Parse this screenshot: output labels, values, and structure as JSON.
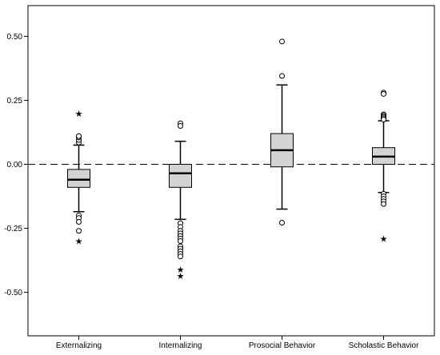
{
  "chart_data": {
    "type": "boxplot",
    "title": "",
    "xlabel": "",
    "ylabel": "",
    "ylim": [
      -0.67,
      0.62
    ],
    "yticks": [
      0.5,
      0.25,
      0.0,
      -0.25,
      -0.5
    ],
    "ytick_labels": [
      "0.50",
      "0.25",
      "0.00",
      "-0.25",
      "-0.50"
    ],
    "reference_line": {
      "y": 0.0,
      "style": "dashed"
    },
    "box_fill": "#d3d3d3",
    "categories": [
      "Externalizing",
      "Internalizing",
      "Prosocial Behavior",
      "Scholastic Behavior"
    ],
    "boxes": [
      {
        "name": "Externalizing",
        "whisker_low": -0.185,
        "q1": -0.09,
        "median": -0.06,
        "q3": -0.02,
        "whisker_high": 0.075,
        "outliers": [
          0.085,
          0.095,
          0.105,
          0.11,
          -0.2,
          -0.21,
          -0.225,
          -0.26
        ],
        "extremes": [
          0.198,
          -0.3
        ]
      },
      {
        "name": "Internalizing",
        "whisker_low": -0.215,
        "q1": -0.09,
        "median": -0.035,
        "q3": 0.0,
        "whisker_high": 0.09,
        "outliers": [
          0.16,
          0.15,
          -0.23,
          -0.245,
          -0.26,
          -0.27,
          -0.28,
          -0.29,
          -0.3,
          -0.32,
          -0.33,
          -0.34,
          -0.35,
          -0.36
        ],
        "extremes": [
          -0.41,
          -0.435
        ]
      },
      {
        "name": "Prosocial Behavior",
        "whisker_low": -0.175,
        "q1": -0.01,
        "median": 0.055,
        "q3": 0.12,
        "whisker_high": 0.31,
        "outliers": [
          0.48,
          0.345,
          -0.228
        ],
        "extremes": []
      },
      {
        "name": "Scholastic Behavior",
        "whisker_low": -0.11,
        "q1": 0.0,
        "median": 0.03,
        "q3": 0.065,
        "whisker_high": 0.17,
        "outliers": [
          0.28,
          0.275,
          0.195,
          0.19,
          0.185,
          0.18,
          0.175,
          -0.115,
          -0.125,
          -0.135,
          -0.145,
          -0.155
        ],
        "extremes": [
          -0.29
        ]
      }
    ]
  }
}
